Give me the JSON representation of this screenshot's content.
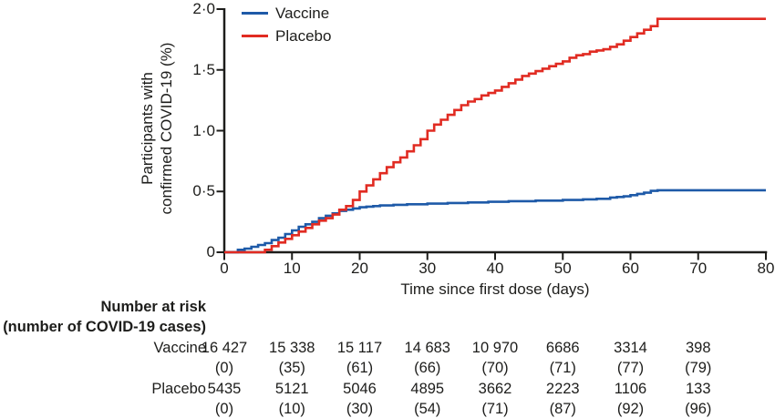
{
  "figure": {
    "background": "#ffffff",
    "text_color": "#1d1d1b",
    "axis_color": "#1d1d1b"
  },
  "legend": {
    "items": [
      {
        "label": "Vaccine",
        "color": "#1e5aa8"
      },
      {
        "label": "Placebo",
        "color": "#e12b22"
      }
    ]
  },
  "chart_data": {
    "type": "line",
    "subtype": "step-after",
    "title": "",
    "xlabel": "Time since first dose (days)",
    "ylabel_lines": [
      "Participants with",
      "confirmed COVID-19 (%)"
    ],
    "xlim": [
      0,
      80
    ],
    "ylim": [
      0,
      2.0
    ],
    "grid": false,
    "legend_position": "top-left",
    "xticks": {
      "values": [
        0,
        10,
        20,
        30,
        40,
        50,
        60,
        70,
        80
      ],
      "labels": [
        "0",
        "10",
        "20",
        "30",
        "40",
        "50",
        "60",
        "70",
        "80"
      ]
    },
    "yticks": {
      "values": [
        0,
        0.5,
        1.0,
        1.5,
        2.0
      ],
      "labels": [
        "0",
        "0·5",
        "1·0",
        "1·5",
        "2·0"
      ]
    },
    "series": [
      {
        "name": "Vaccine",
        "color": "#1e5aa8",
        "points": [
          [
            0,
            0
          ],
          [
            2,
            0.02
          ],
          [
            3,
            0.03
          ],
          [
            4,
            0.045
          ],
          [
            5,
            0.06
          ],
          [
            6,
            0.075
          ],
          [
            7,
            0.1
          ],
          [
            8,
            0.12
          ],
          [
            9,
            0.15
          ],
          [
            10,
            0.18
          ],
          [
            11,
            0.21
          ],
          [
            12,
            0.23
          ],
          [
            13,
            0.25
          ],
          [
            14,
            0.28
          ],
          [
            15,
            0.3
          ],
          [
            16,
            0.32
          ],
          [
            17,
            0.34
          ],
          [
            18,
            0.35
          ],
          [
            19,
            0.36
          ],
          [
            20,
            0.37
          ],
          [
            21,
            0.375
          ],
          [
            22,
            0.38
          ],
          [
            23,
            0.385
          ],
          [
            25,
            0.39
          ],
          [
            27,
            0.395
          ],
          [
            30,
            0.4
          ],
          [
            33,
            0.405
          ],
          [
            36,
            0.41
          ],
          [
            39,
            0.415
          ],
          [
            42,
            0.42
          ],
          [
            46,
            0.425
          ],
          [
            50,
            0.43
          ],
          [
            53,
            0.435
          ],
          [
            55,
            0.44
          ],
          [
            57,
            0.45
          ],
          [
            58,
            0.455
          ],
          [
            59,
            0.46
          ],
          [
            60,
            0.47
          ],
          [
            61,
            0.48
          ],
          [
            62,
            0.49
          ],
          [
            63,
            0.505
          ],
          [
            64,
            0.51
          ],
          [
            80,
            0.51
          ]
        ]
      },
      {
        "name": "Placebo",
        "color": "#e12b22",
        "points": [
          [
            0,
            0
          ],
          [
            6,
            0.02
          ],
          [
            7,
            0.05
          ],
          [
            8,
            0.08
          ],
          [
            9,
            0.11
          ],
          [
            10,
            0.14
          ],
          [
            11,
            0.17
          ],
          [
            12,
            0.2
          ],
          [
            13,
            0.23
          ],
          [
            14,
            0.26
          ],
          [
            15,
            0.28
          ],
          [
            16,
            0.31
          ],
          [
            17,
            0.35
          ],
          [
            18,
            0.38
          ],
          [
            19,
            0.43
          ],
          [
            20,
            0.5
          ],
          [
            21,
            0.55
          ],
          [
            22,
            0.6
          ],
          [
            23,
            0.65
          ],
          [
            24,
            0.7
          ],
          [
            25,
            0.74
          ],
          [
            26,
            0.78
          ],
          [
            27,
            0.83
          ],
          [
            28,
            0.88
          ],
          [
            29,
            0.93
          ],
          [
            30,
            1.0
          ],
          [
            31,
            1.05
          ],
          [
            32,
            1.09
          ],
          [
            33,
            1.13
          ],
          [
            34,
            1.17
          ],
          [
            35,
            1.21
          ],
          [
            36,
            1.24
          ],
          [
            37,
            1.26
          ],
          [
            38,
            1.29
          ],
          [
            39,
            1.31
          ],
          [
            40,
            1.33
          ],
          [
            41,
            1.36
          ],
          [
            42,
            1.39
          ],
          [
            43,
            1.42
          ],
          [
            44,
            1.45
          ],
          [
            45,
            1.47
          ],
          [
            46,
            1.49
          ],
          [
            47,
            1.51
          ],
          [
            48,
            1.53
          ],
          [
            49,
            1.55
          ],
          [
            50,
            1.57
          ],
          [
            51,
            1.6
          ],
          [
            52,
            1.62
          ],
          [
            53,
            1.63
          ],
          [
            54,
            1.65
          ],
          [
            55,
            1.66
          ],
          [
            56,
            1.67
          ],
          [
            57,
            1.69
          ],
          [
            58,
            1.71
          ],
          [
            59,
            1.74
          ],
          [
            60,
            1.77
          ],
          [
            61,
            1.8
          ],
          [
            62,
            1.83
          ],
          [
            63,
            1.86
          ],
          [
            64,
            1.92
          ],
          [
            80,
            1.92
          ]
        ]
      }
    ]
  },
  "risk_table": {
    "header_line1": "Number at risk",
    "header_line2": "(number of COVID-19 cases)",
    "rows": [
      {
        "label": "Vaccine",
        "n": [
          "16 427",
          "15 338",
          "15 117",
          "14 683",
          "10 970",
          "6686",
          "3314",
          "398"
        ],
        "cases": [
          "(0)",
          "(35)",
          "(61)",
          "(66)",
          "(70)",
          "(71)",
          "(77)",
          "(79)"
        ]
      },
      {
        "label": "Placebo",
        "n": [
          "5435",
          "5121",
          "5046",
          "4895",
          "3662",
          "2223",
          "1106",
          "133"
        ],
        "cases": [
          "(0)",
          "(10)",
          "(30)",
          "(54)",
          "(71)",
          "(87)",
          "(92)",
          "(96)"
        ]
      }
    ]
  }
}
